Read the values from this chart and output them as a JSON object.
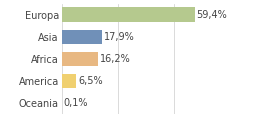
{
  "categories": [
    "Europa",
    "Asia",
    "Africa",
    "America",
    "Oceania"
  ],
  "values": [
    59.4,
    17.9,
    16.2,
    6.5,
    0.1
  ],
  "labels": [
    "59,4%",
    "17,9%",
    "16,2%",
    "6,5%",
    "0,1%"
  ],
  "bar_colors": [
    "#b5c98e",
    "#7090b8",
    "#e8b882",
    "#f0d070",
    "#c8c8a0"
  ],
  "background_color": "#ffffff",
  "xlim": [
    0,
    75
  ],
  "label_fontsize": 7,
  "tick_fontsize": 7,
  "grid_ticks": [
    0,
    25,
    50,
    75
  ]
}
